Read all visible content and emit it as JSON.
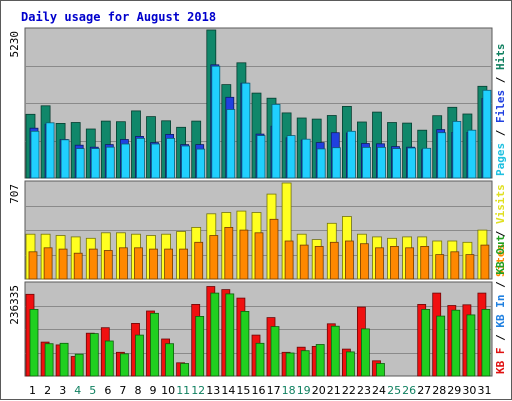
{
  "chart_data": {
    "type": "bar",
    "title": "Daily usage for August 2018",
    "categories": [
      "1",
      "2",
      "3",
      "4",
      "5",
      "6",
      "7",
      "8",
      "9",
      "10",
      "11",
      "12",
      "13",
      "14",
      "15",
      "16",
      "17",
      "18",
      "19",
      "20",
      "21",
      "22",
      "23",
      "24",
      "25",
      "26",
      "27",
      "28",
      "29",
      "30",
      "31"
    ],
    "weekend_days": [
      "4",
      "5",
      "11",
      "12",
      "18",
      "19",
      "25",
      "26"
    ],
    "panels": [
      {
        "name": "hits-files-pages",
        "ymax_label": "5230",
        "ylim": [
          0,
          5230
        ],
        "legend": [
          "Pages",
          "Files",
          "Hits"
        ],
        "series": [
          {
            "name": "Hits",
            "color": "#10876a",
            "values": [
              2250,
              2550,
              1930,
              1960,
              1730,
              2010,
              1990,
              2370,
              2170,
              2020,
              1790,
              2010,
              5230,
              3300,
              4070,
              3000,
              2820,
              2300,
              2120,
              2080,
              2210,
              2530,
              1980,
              2330,
              1960,
              1940,
              1690,
              2200,
              2500,
              2260,
              3240
            ]
          },
          {
            "name": "Files",
            "color": "#2040e0",
            "values": [
              1760,
              1900,
              1360,
              1160,
              1090,
              1180,
              1360,
              1470,
              1250,
              1540,
              1180,
              1180,
              4000,
              2850,
              3350,
              1550,
              1830,
              1420,
              1340,
              1250,
              1600,
              1590,
              1220,
              1210,
              1110,
              1090,
              1000,
              1710,
              1610,
              1610,
              2810
            ]
          },
          {
            "name": "Pages",
            "color": "#20d0ff",
            "values": [
              1650,
              1950,
              1350,
              1040,
              1040,
              1090,
              1200,
              1400,
              1200,
              1400,
              1130,
              1020,
              3950,
              2420,
              3350,
              1500,
              2600,
              1500,
              1370,
              1030,
              1070,
              1650,
              1080,
              1080,
              1040,
              1060,
              1050,
              1600,
              2000,
              1690,
              3100
            ]
          }
        ]
      },
      {
        "name": "visits-sites",
        "ymax_label": "707",
        "ylim": [
          0,
          707
        ],
        "legend": [
          "Sites",
          "Visits"
        ],
        "series": [
          {
            "name": "Visits",
            "color": "#ffff20",
            "values": [
              330,
              330,
              320,
              310,
              300,
              340,
              340,
              330,
              320,
              330,
              350,
              380,
              480,
              490,
              500,
              490,
              625,
              707,
              330,
              290,
              410,
              460,
              330,
              310,
              300,
              310,
              310,
              280,
              280,
              270,
              360
            ]
          },
          {
            "name": "Sites",
            "color": "#ff8800",
            "values": [
              200,
              230,
              220,
              190,
              220,
              210,
              230,
              230,
              220,
              220,
              220,
              270,
              320,
              380,
              360,
              340,
              440,
              280,
              250,
              240,
              270,
              280,
              260,
              230,
              240,
              230,
              240,
              180,
              200,
              180,
              250
            ]
          }
        ]
      },
      {
        "name": "kbf-kbin-kbout",
        "ymax_label": "236335",
        "ylim": [
          0,
          236335
        ],
        "legend": [
          "KB F",
          "KB In",
          "KB Out"
        ],
        "series": [
          {
            "name": "KB F",
            "color": "#f01010",
            "values": [
              210000,
              87000,
              80000,
              50000,
              110000,
              124000,
              61000,
              135000,
              167000,
              95000,
              34000,
              184000,
              230000,
              222000,
              200000,
              105000,
              150000,
              61000,
              74000,
              76000,
              134000,
              69000,
              177000,
              39000,
              0,
              0,
              184000,
              213000,
              181000,
              183000,
              213000
            ]
          },
          {
            "name": "KB Out",
            "color": "#20d020",
            "values": [
              171000,
              83000,
              84000,
              56000,
              109000,
              90000,
              57000,
              105000,
              161000,
              83000,
              32000,
              153000,
              213000,
              211000,
              166000,
              84000,
              127000,
              59000,
              65000,
              81000,
              128000,
              62000,
              121000,
              32000,
              0,
              0,
              171000,
              154000,
              169000,
              157000,
              171000
            ]
          }
        ]
      }
    ]
  }
}
